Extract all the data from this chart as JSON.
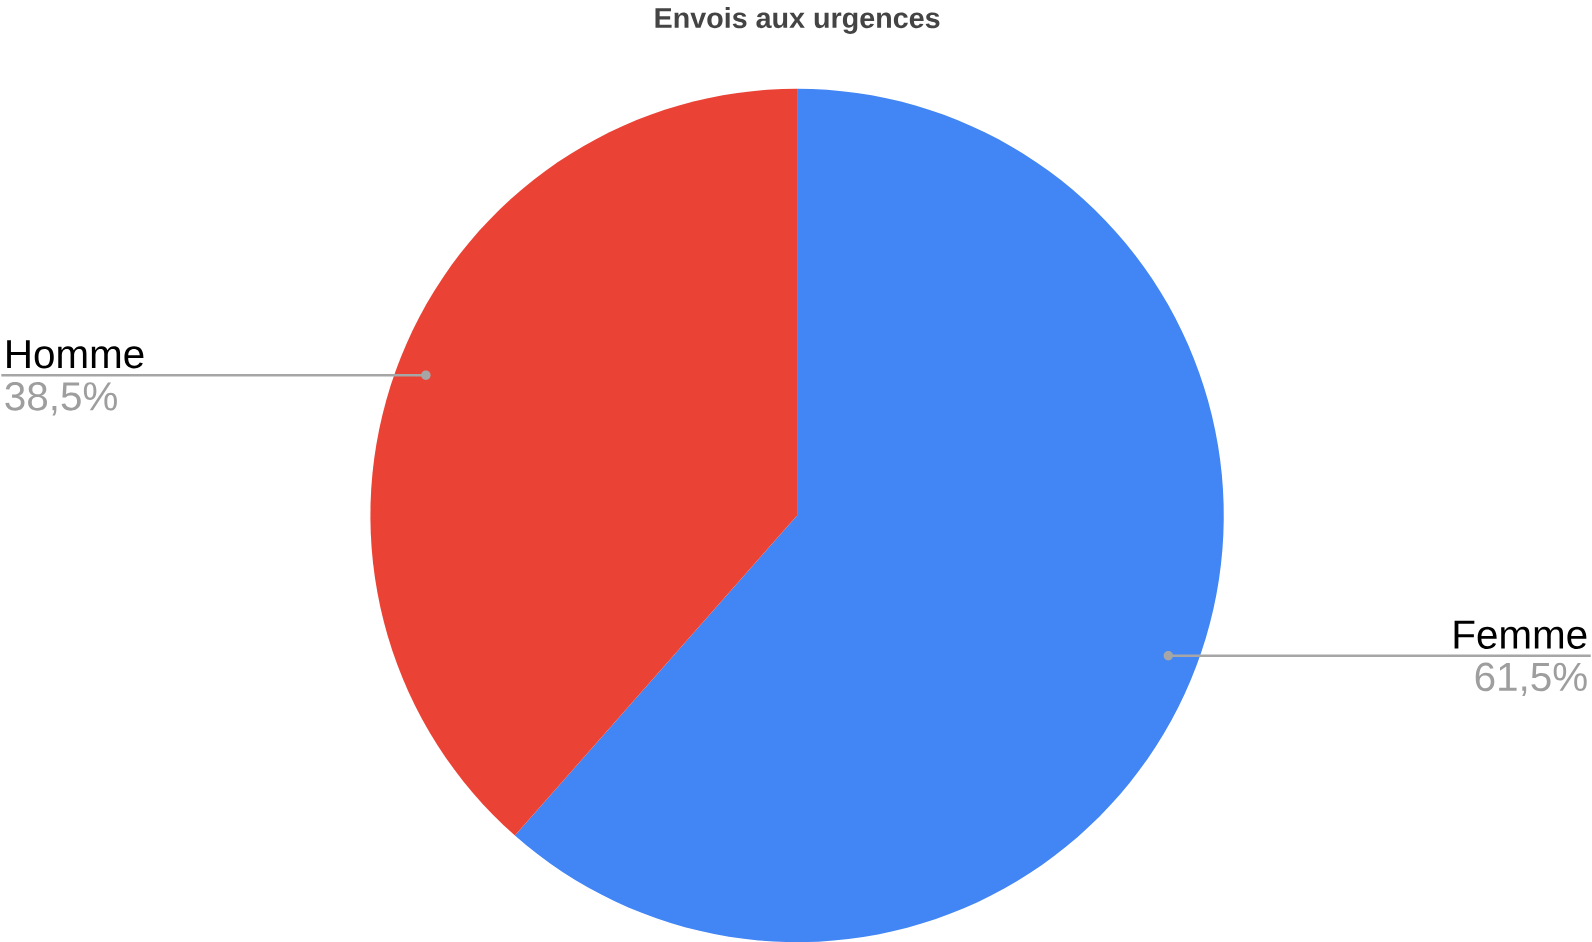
{
  "chart_data": {
    "type": "pie",
    "title": "Envois aux urgences",
    "categories": [
      "Femme",
      "Homme"
    ],
    "values": [
      61.5,
      38.5
    ],
    "colors": [
      "#4285f4",
      "#ea4335"
    ],
    "value_labels": [
      "61,5%",
      "38,5%"
    ]
  }
}
